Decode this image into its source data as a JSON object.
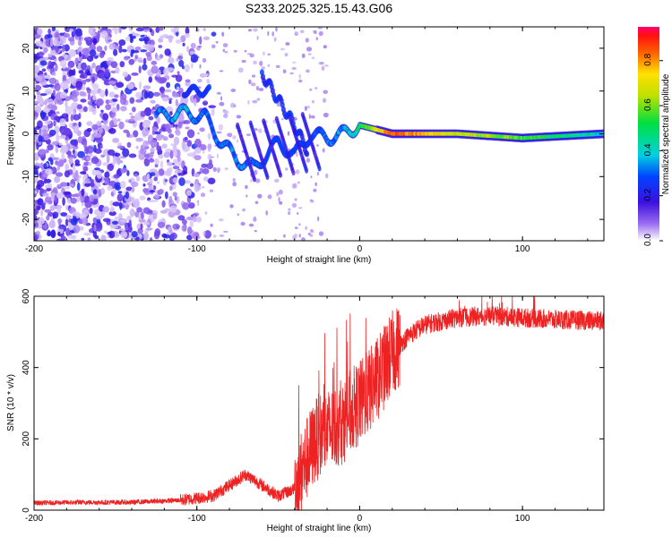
{
  "title": "S233.2025.325.15.43.G06",
  "chart_data": [
    {
      "type": "heatmap",
      "title": "S233.2025.325.15.43.G06",
      "xlabel": "Height of straight line (km)",
      "ylabel": "Frequency (Hz)",
      "xlim": [
        -200,
        150
      ],
      "ylim": [
        -25,
        25
      ],
      "xticks": [
        -200,
        -100,
        0,
        100
      ],
      "yticks": [
        -20,
        -10,
        0,
        10,
        20
      ],
      "colorbar": {
        "label": "Normalized spectral amplitude",
        "range": [
          0.0,
          0.95
        ],
        "ticks": [
          "0.0",
          "0.2",
          "0.4",
          "0.6",
          "0.8"
        ]
      },
      "ridge": {
        "description_points_height_km": [
          -125,
          -110,
          -95,
          -85,
          -75,
          -65,
          -50,
          -40,
          -30,
          -20,
          -10,
          0,
          20,
          60,
          100,
          150
        ],
        "frequency_hz": [
          4,
          5,
          4,
          -2,
          -6,
          -8,
          -2,
          -5,
          0,
          -1,
          0,
          2,
          0,
          0,
          -1,
          0
        ],
        "amplitude": [
          0.3,
          0.4,
          0.3,
          0.3,
          0.35,
          0.3,
          0.2,
          0.2,
          0.25,
          0.3,
          0.35,
          0.5,
          0.9,
          0.7,
          0.6,
          0.4
        ]
      },
      "branch_upper": {
        "height_km": [
          -60,
          -50,
          -40,
          -32
        ],
        "frequency_hz": [
          14,
          8,
          2,
          -4
        ]
      },
      "branch_10hz": {
        "height_km": [
          -108,
          -100,
          -92
        ],
        "frequency_hz": [
          10,
          10,
          10
        ]
      }
    },
    {
      "type": "line",
      "xlabel": "Height of straight line (km)",
      "ylabel": "SNR (10 * v/v)",
      "xlim": [
        -200,
        150
      ],
      "ylim": [
        0,
        600
      ],
      "xticks": [
        -200,
        -100,
        0,
        100
      ],
      "yticks": [
        0,
        200,
        400,
        600
      ],
      "line_color": "#ee2222",
      "series": [
        {
          "name": "SNR",
          "x": [
            -200,
            -170,
            -140,
            -110,
            -90,
            -80,
            -70,
            -60,
            -50,
            -40,
            -30,
            -25,
            -20,
            -15,
            -10,
            -5,
            0,
            5,
            10,
            15,
            20,
            30,
            40,
            60,
            80,
            100,
            120,
            150
          ],
          "values": [
            20,
            22,
            22,
            28,
            40,
            70,
            100,
            70,
            40,
            60,
            170,
            210,
            220,
            230,
            250,
            280,
            300,
            330,
            360,
            400,
            440,
            490,
            520,
            540,
            545,
            540,
            535,
            530
          ]
        }
      ]
    }
  ]
}
